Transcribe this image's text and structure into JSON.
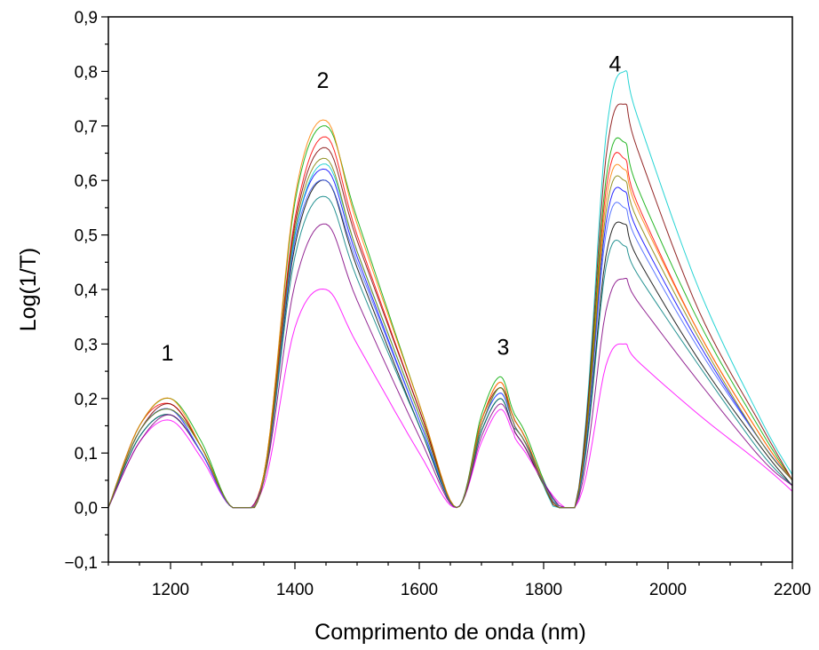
{
  "chart_data": {
    "type": "line",
    "title": "",
    "xlabel": "Comprimento de onda (nm)",
    "ylabel": "Log(1/T)",
    "xlim": [
      1100,
      2200
    ],
    "ylim": [
      -0.1,
      0.9
    ],
    "xticks": [
      1200,
      1400,
      1600,
      1800,
      2000,
      2200
    ],
    "xtick_labels": [
      "1200",
      "1400",
      "1600",
      "1800",
      "2000",
      "2200"
    ],
    "yticks": [
      -0.1,
      0.0,
      0.1,
      0.2,
      0.3,
      0.4,
      0.5,
      0.6,
      0.7,
      0.8,
      0.9
    ],
    "ytick_labels": [
      "−0,1",
      "0,0",
      "0,1",
      "0,2",
      "0,3",
      "0,4",
      "0,5",
      "0,6",
      "0,7",
      "0,8",
      "0,9"
    ],
    "grid": false,
    "legend": "none",
    "annotations": [
      {
        "text": "1",
        "x": 1195,
        "y": 0.27
      },
      {
        "text": "2",
        "x": 1445,
        "y": 0.77
      },
      {
        "text": "3",
        "x": 1735,
        "y": 0.28
      },
      {
        "text": "4",
        "x": 1915,
        "y": 0.8
      }
    ],
    "series": [
      {
        "color": "#ff0000",
        "values": [
          0.0,
          0.15,
          0.19,
          0.11,
          0.0,
          0.06,
          0.53,
          0.68,
          0.5,
          0.18,
          0.0,
          0.16,
          0.23,
          0.17,
          0.14,
          0.0,
          0.58,
          0.64,
          0.56,
          0.32,
          0.13,
          0.05
        ]
      },
      {
        "color": "#0000ff",
        "values": [
          0.0,
          0.14,
          0.18,
          0.1,
          0.0,
          0.05,
          0.5,
          0.62,
          0.46,
          0.16,
          0.0,
          0.15,
          0.21,
          0.16,
          0.13,
          0.0,
          0.52,
          0.58,
          0.51,
          0.3,
          0.12,
          0.05
        ]
      },
      {
        "color": "#00aa00",
        "values": [
          0.0,
          0.15,
          0.2,
          0.12,
          0.0,
          0.06,
          0.56,
          0.7,
          0.53,
          0.19,
          0.0,
          0.17,
          0.24,
          0.18,
          0.15,
          0.0,
          0.6,
          0.67,
          0.59,
          0.34,
          0.14,
          0.05
        ]
      },
      {
        "color": "#000000",
        "values": [
          0.0,
          0.13,
          0.17,
          0.1,
          0.0,
          0.05,
          0.48,
          0.6,
          0.44,
          0.15,
          0.0,
          0.14,
          0.2,
          0.15,
          0.12,
          0.0,
          0.46,
          0.52,
          0.46,
          0.27,
          0.11,
          0.04
        ]
      },
      {
        "color": "#ff00ff",
        "values": [
          0.0,
          0.12,
          0.16,
          0.09,
          0.0,
          0.04,
          0.33,
          0.4,
          0.3,
          0.1,
          0.0,
          0.12,
          0.18,
          0.14,
          0.11,
          0.0,
          0.26,
          0.3,
          0.27,
          0.17,
          0.08,
          0.03
        ]
      },
      {
        "color": "#00cccc",
        "values": [
          0.0,
          0.14,
          0.18,
          0.11,
          0.0,
          0.05,
          0.5,
          0.63,
          0.47,
          0.17,
          0.0,
          0.15,
          0.22,
          0.17,
          0.14,
          0.0,
          0.68,
          0.8,
          0.72,
          0.4,
          0.16,
          0.06
        ]
      },
      {
        "color": "#800000",
        "values": [
          0.0,
          0.14,
          0.19,
          0.11,
          0.0,
          0.05,
          0.52,
          0.66,
          0.49,
          0.18,
          0.0,
          0.16,
          0.22,
          0.17,
          0.14,
          0.0,
          0.64,
          0.74,
          0.66,
          0.36,
          0.15,
          0.05
        ]
      },
      {
        "color": "#008080",
        "values": [
          0.0,
          0.13,
          0.17,
          0.1,
          0.0,
          0.05,
          0.46,
          0.57,
          0.42,
          0.15,
          0.0,
          0.14,
          0.2,
          0.15,
          0.13,
          0.0,
          0.44,
          0.48,
          0.43,
          0.26,
          0.1,
          0.04
        ]
      },
      {
        "color": "#ff8000",
        "values": [
          0.0,
          0.15,
          0.2,
          0.11,
          0.0,
          0.06,
          0.57,
          0.71,
          0.52,
          0.19,
          0.0,
          0.16,
          0.23,
          0.17,
          0.14,
          0.0,
          0.56,
          0.62,
          0.55,
          0.32,
          0.13,
          0.05
        ]
      },
      {
        "color": "#800080",
        "values": [
          0.0,
          0.12,
          0.17,
          0.1,
          0.0,
          0.05,
          0.41,
          0.52,
          0.38,
          0.13,
          0.0,
          0.13,
          0.19,
          0.15,
          0.12,
          0.0,
          0.36,
          0.42,
          0.38,
          0.23,
          0.09,
          0.04
        ]
      },
      {
        "color": "#4060ff",
        "values": [
          0.0,
          0.14,
          0.18,
          0.1,
          0.0,
          0.05,
          0.49,
          0.6,
          0.45,
          0.16,
          0.0,
          0.15,
          0.21,
          0.16,
          0.13,
          0.0,
          0.5,
          0.55,
          0.49,
          0.29,
          0.12,
          0.05
        ]
      },
      {
        "color": "#808000",
        "values": [
          0.0,
          0.14,
          0.18,
          0.11,
          0.0,
          0.05,
          0.51,
          0.64,
          0.47,
          0.17,
          0.0,
          0.15,
          0.22,
          0.16,
          0.13,
          0.0,
          0.54,
          0.6,
          0.53,
          0.31,
          0.12,
          0.05
        ]
      }
    ]
  }
}
